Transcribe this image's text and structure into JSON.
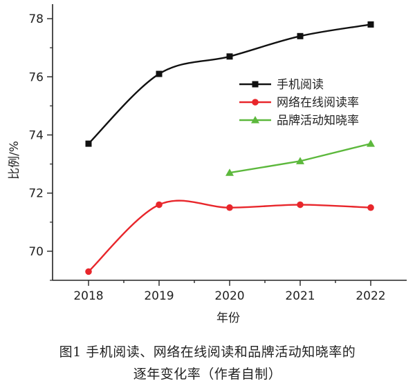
{
  "chart_data": {
    "type": "line",
    "x": [
      "2018",
      "2019",
      "2020",
      "2021",
      "2022"
    ],
    "xlabel": "年份",
    "ylabel": "比例/%",
    "ylim": [
      69.0,
      78.5
    ],
    "yticks": [
      70,
      72,
      74,
      76,
      78
    ],
    "grid": false,
    "legend_position": "top-right",
    "series": [
      {
        "name": "手机阅读",
        "color": "#111111",
        "marker": "square",
        "values": [
          73.7,
          76.1,
          76.7,
          77.4,
          77.8
        ]
      },
      {
        "name": "网络在线阅读率",
        "color": "#e8262b",
        "marker": "circle",
        "values": [
          69.3,
          71.6,
          71.5,
          71.6,
          71.5
        ]
      },
      {
        "name": "品牌活动知晓率",
        "color": "#5cb83c",
        "marker": "triangle",
        "values": [
          null,
          null,
          72.7,
          73.1,
          73.7
        ]
      }
    ]
  },
  "caption": {
    "line1": "图1 手机阅读、网络在线阅读和品牌活动知晓率的",
    "line2": "逐年变化率（作者自制）"
  }
}
